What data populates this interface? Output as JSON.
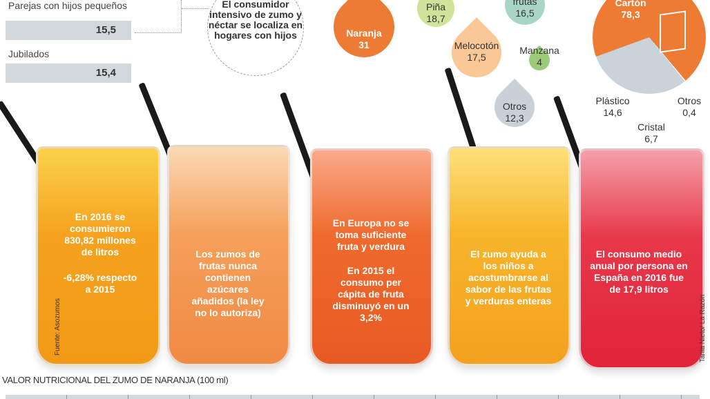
{
  "households": {
    "items": [
      {
        "label": "Parejas con hijos pequeños",
        "value": "15,5"
      },
      {
        "label": "Jubilados",
        "value": "15,4"
      }
    ],
    "callout": "El consumidor intensivo de zumo y néctar se localiza en hogares con hijos"
  },
  "flavors": [
    {
      "label": "Naranja",
      "value": "31",
      "color": "#ee7b33"
    },
    {
      "label": "Piña",
      "value": "18,7",
      "color": "#cfe39a"
    },
    {
      "label": "frutas",
      "value": "16,5",
      "color": "#a8d5c6"
    },
    {
      "label": "Melocotón",
      "value": "17,5",
      "color": "#f9c896"
    },
    {
      "label": "Manzana",
      "value": "4",
      "color": "#9ccc7a"
    },
    {
      "label": "Otros",
      "value": "12,3",
      "color": "#c7d1d7"
    }
  ],
  "packaging": {
    "colors": {
      "carton": "#ee7b33",
      "other": "#c9d3d9"
    },
    "items": [
      {
        "label": "Cartón",
        "value": "78,3"
      },
      {
        "label": "Plástico",
        "value": "14,6"
      },
      {
        "label": "Cristal",
        "value": "6,7"
      },
      {
        "label": "Otros",
        "value": "0,4"
      }
    ]
  },
  "glasses": [
    {
      "text": "En 2016 se consumieron 830,82 millones de litros",
      "sub": "-6,28% respecto a 2015",
      "color": "#f6a21f"
    },
    {
      "text": "Los zumos de frutas nunca contienen azúcares añadidos (la ley no lo autoriza)",
      "color": "#f5a05a"
    },
    {
      "text": "En Europa no se toma suficiente fruta y verdura",
      "sub": "En 2015 el consumo per cápita de fruta disminuyó en un 3,2%",
      "color": "#ef6a2c"
    },
    {
      "text": "El zumo ayuda a los niños a acostumbrarse al sabor de las frutas y verduras enteras",
      "color": "#f7b52a"
    },
    {
      "text": "El consumo medio anual por persona en España en 2016 fue de 17,9 litros",
      "color": "#e8384a"
    }
  ],
  "source": "Fuente: Asozumos",
  "credit": "Tania Nieto/ La Razón",
  "nutrition_title": "VALOR NUTRICIONAL DEL ZUMO DE NARANJA (100 ml)"
}
